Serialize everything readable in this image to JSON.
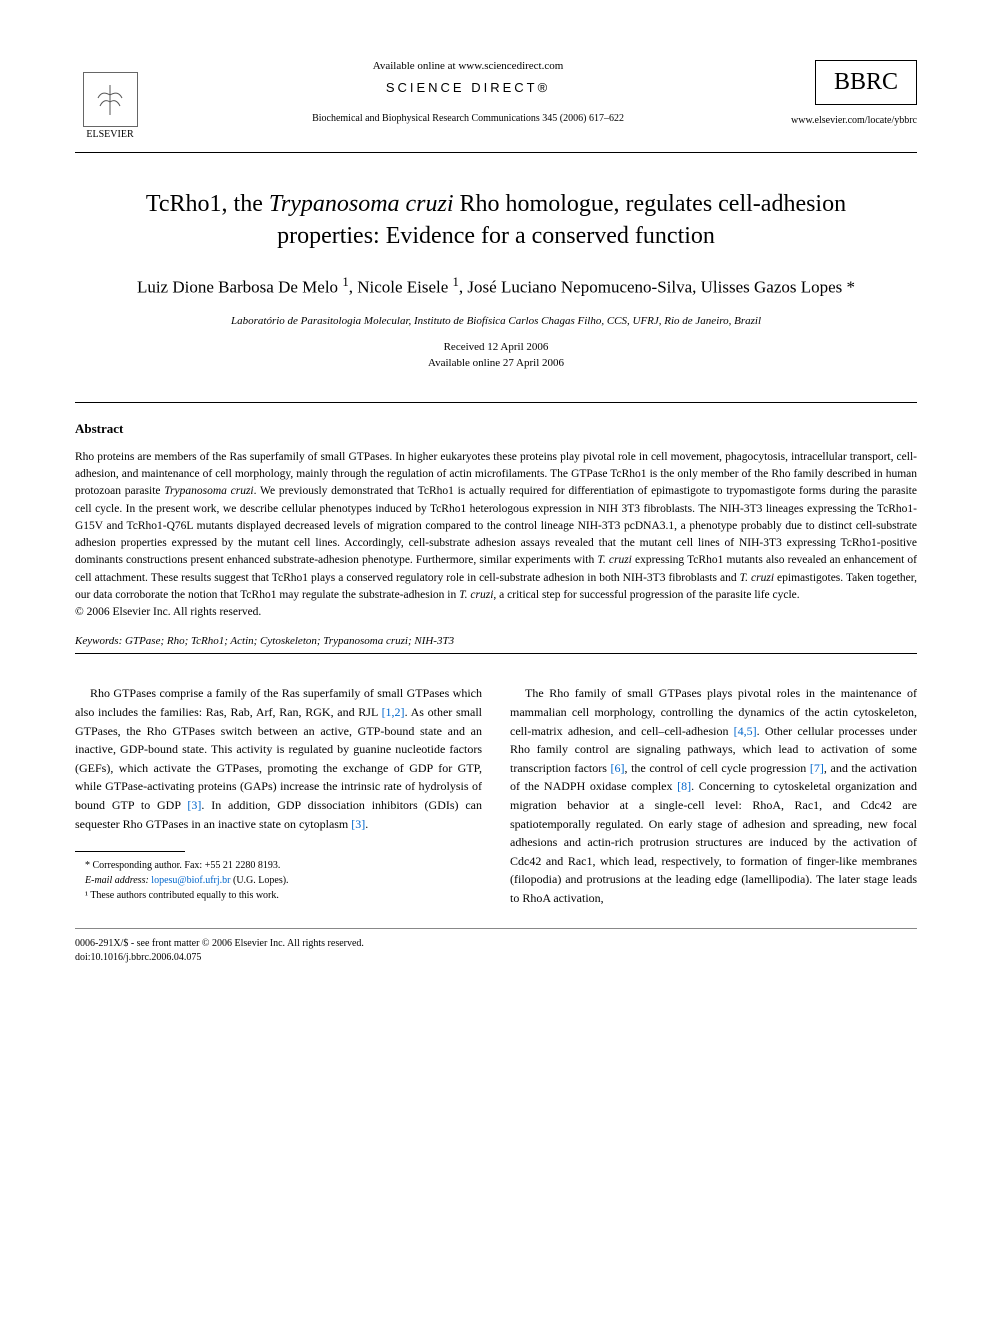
{
  "header": {
    "elsevier_label": "ELSEVIER",
    "available_online": "Available online at www.sciencedirect.com",
    "science_direct": "SCIENCE DIRECT®",
    "journal_citation": "Biochemical and Biophysical Research Communications 345 (2006) 617–622",
    "bbrc_label": "BBRC",
    "journal_url": "www.elsevier.com/locate/ybbrc"
  },
  "article": {
    "title_html": "TcRho1, the <span class=\"italic\">Trypanosoma cruzi</span> Rho homologue, regulates cell-adhesion properties: Evidence for a conserved function",
    "authors_html": "Luiz Dione Barbosa De Melo <sup>1</sup>, Nicole Eisele <sup>1</sup>, José Luciano Nepomuceno-Silva, Ulisses Gazos Lopes *",
    "affiliation": "Laboratório de Parasitologia Molecular, Instituto de Biofísica Carlos Chagas Filho, CCS, UFRJ, Rio de Janeiro, Brazil",
    "received": "Received 12 April 2006",
    "available": "Available online 27 April 2006"
  },
  "abstract": {
    "heading": "Abstract",
    "text_html": "Rho proteins are members of the Ras superfamily of small GTPases. In higher eukaryotes these proteins play pivotal role in cell movement, phagocytosis, intracellular transport, cell-adhesion, and maintenance of cell morphology, mainly through the regulation of actin microfilaments. The GTPase TcRho1 is the only member of the Rho family described in human protozoan parasite <span class=\"italic\">Trypanosoma cruzi</span>. We previously demonstrated that TcRho1 is actually required for differentiation of epimastigote to trypomastigote forms during the parasite cell cycle. In the present work, we describe cellular phenotypes induced by TcRho1 heterologous expression in NIH 3T3 fibroblasts. The NIH-3T3 lineages expressing the TcRho1-G15V and TcRho1-Q76L mutants displayed decreased levels of migration compared to the control lineage NIH-3T3 pcDNA3.1, a phenotype probably due to distinct cell-substrate adhesion properties expressed by the mutant cell lines. Accordingly, cell-substrate adhesion assays revealed that the mutant cell lines of NIH-3T3 expressing TcRho1-positive dominants constructions present enhanced substrate-adhesion phenotype. Furthermore, similar experiments with <span class=\"italic\">T. cruzi</span> expressing TcRho1 mutants also revealed an enhancement of cell attachment. These results suggest that TcRho1 plays a conserved regulatory role in cell-substrate adhesion in both NIH-3T3 fibroblasts and <span class=\"italic\">T. cruzi</span> epimastigotes. Taken together, our data corroborate the notion that TcRho1 may regulate the substrate-adhesion in <span class=\"italic\">T. cruzi</span>, a critical step for successful progression of the parasite life cycle.",
    "copyright": "© 2006 Elsevier Inc. All rights reserved.",
    "keywords_label": "Keywords:",
    "keywords_html": "GTPase; Rho; TcRho1; Actin; Cytoskeleton; <span class=\"italic\">Trypanosoma cruzi</span>; NIH-3T3"
  },
  "body": {
    "col1_p1_html": "Rho GTPases comprise a family of the Ras superfamily of small GTPases which also includes the families: Ras, Rab, Arf, Ran, RGK, and RJL <span class=\"ref-link\">[1,2]</span>. As other small GTPases, the Rho GTPases switch between an active, GTP-bound state and an inactive, GDP-bound state. This activity is regulated by guanine nucleotide factors (GEFs), which activate the GTPases, promoting the exchange of GDP for GTP, while GTPase-activating proteins (GAPs) increase the intrinsic rate of hydrolysis of bound GTP to GDP <span class=\"ref-link\">[3]</span>. In addition, GDP dissociation inhibitors (GDIs) can sequester Rho GTPases in an inactive state on cytoplasm <span class=\"ref-link\">[3]</span>.",
    "col2_p1_html": "The Rho family of small GTPases plays pivotal roles in the maintenance of mammalian cell morphology, controlling the dynamics of the actin cytoskeleton, cell-matrix adhesion, and cell–cell-adhesion <span class=\"ref-link\">[4,5]</span>. Other cellular processes under Rho family control are signaling pathways, which lead to activation of some transcription factors <span class=\"ref-link\">[6]</span>, the control of cell cycle progression <span class=\"ref-link\">[7]</span>, and the activation of the NADPH oxidase complex <span class=\"ref-link\">[8]</span>. Concerning to cytoskeletal organization and migration behavior at a single-cell level: RhoA, Rac1, and Cdc42 are spatiotemporally regulated. On early stage of adhesion and spreading, new focal adhesions and actin-rich protrusion structures are induced by the activation of Cdc42 and Rac1, which lead, respectively, to formation of finger-like membranes (filopodia) and protrusions at the leading edge (lamellipodia). The later stage leads to RhoA activation,"
  },
  "footnotes": {
    "corresponding": "* Corresponding author. Fax: +55 21 2280 8193.",
    "email_label": "E-mail address:",
    "email": "lopesu@biof.ufrj.br",
    "email_suffix": "(U.G. Lopes).",
    "contribution": "¹ These authors contributed equally to this work."
  },
  "footer": {
    "line1": "0006-291X/$ - see front matter © 2006 Elsevier Inc. All rights reserved.",
    "line2": "doi:10.1016/j.bbrc.2006.04.075"
  }
}
